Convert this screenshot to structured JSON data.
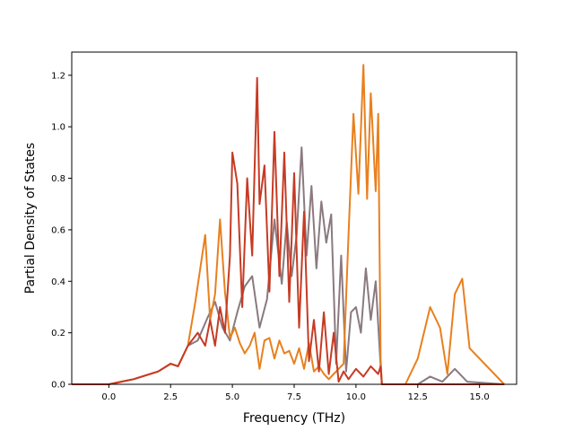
{
  "chart_data": {
    "type": "line",
    "title": "",
    "xlabel": "Frequency (THz)",
    "ylabel": "Partial Density of States",
    "xlim": [
      -1.5,
      16.5
    ],
    "ylim": [
      0,
      1.29
    ],
    "x_ticks": [
      0.0,
      2.5,
      5.0,
      7.5,
      10.0,
      12.5,
      15.0
    ],
    "x_tick_labels": [
      "0.0",
      "2.5",
      "5.0",
      "7.5",
      "10.0",
      "12.5",
      "15.0"
    ],
    "y_ticks": [
      0.0,
      0.2,
      0.4,
      0.6,
      0.8,
      1.0,
      1.2
    ],
    "y_tick_labels": [
      "0.0",
      "0.2",
      "0.4",
      "0.6",
      "0.8",
      "1.0",
      "1.2"
    ],
    "grid": false,
    "legend": "none",
    "series": [
      {
        "color": "#8a7a80",
        "x": [
          -1.5,
          0,
          1,
          2,
          2.5,
          2.8,
          3.2,
          3.6,
          4.0,
          4.3,
          4.6,
          4.9,
          5.2,
          5.5,
          5.8,
          6.1,
          6.4,
          6.7,
          7.0,
          7.2,
          7.4,
          7.6,
          7.8,
          8.0,
          8.2,
          8.4,
          8.6,
          8.8,
          9.0,
          9.2,
          9.4,
          9.6,
          9.8,
          10.0,
          10.2,
          10.4,
          10.6,
          10.8,
          11.0,
          11.05,
          12.0,
          12.5,
          13.0,
          13.5,
          14.0,
          14.5,
          16.0
        ],
        "y": [
          0,
          0,
          0.02,
          0.05,
          0.08,
          0.07,
          0.15,
          0.17,
          0.26,
          0.32,
          0.22,
          0.17,
          0.28,
          0.38,
          0.42,
          0.22,
          0.33,
          0.64,
          0.39,
          0.63,
          0.42,
          0.58,
          0.92,
          0.5,
          0.77,
          0.45,
          0.71,
          0.55,
          0.66,
          0.08,
          0.5,
          0.05,
          0.28,
          0.3,
          0.2,
          0.45,
          0.25,
          0.4,
          0.07,
          0,
          0,
          0,
          0.03,
          0.01,
          0.06,
          0.01,
          0
        ]
      },
      {
        "color": "#e8801e",
        "x": [
          -1.5,
          0,
          1,
          2,
          2.5,
          2.8,
          3.2,
          3.5,
          3.7,
          3.9,
          4.1,
          4.3,
          4.5,
          4.7,
          4.9,
          5.1,
          5.3,
          5.5,
          5.7,
          5.9,
          6.1,
          6.3,
          6.5,
          6.7,
          6.9,
          7.1,
          7.3,
          7.5,
          7.7,
          7.9,
          8.1,
          8.3,
          8.5,
          8.7,
          8.9,
          9.1,
          9.3,
          9.5,
          9.7,
          9.9,
          10.1,
          10.3,
          10.45,
          10.6,
          10.8,
          10.9,
          11.0,
          11.05,
          12.0,
          12.5,
          13.0,
          13.4,
          13.7,
          14.0,
          14.3,
          14.6,
          16.0
        ],
        "y": [
          0,
          0,
          0.02,
          0.05,
          0.08,
          0.07,
          0.15,
          0.32,
          0.45,
          0.58,
          0.25,
          0.35,
          0.64,
          0.36,
          0.18,
          0.22,
          0.16,
          0.12,
          0.15,
          0.2,
          0.06,
          0.17,
          0.18,
          0.1,
          0.17,
          0.12,
          0.13,
          0.08,
          0.14,
          0.06,
          0.16,
          0.05,
          0.07,
          0.04,
          0.02,
          0.04,
          0.06,
          0.08,
          0.58,
          1.05,
          0.74,
          1.24,
          0.72,
          1.13,
          0.75,
          1.05,
          0.1,
          0,
          0,
          0.1,
          0.3,
          0.22,
          0.04,
          0.35,
          0.41,
          0.14,
          0
        ]
      },
      {
        "color": "#c63b24",
        "x": [
          -1.5,
          0,
          1,
          2,
          2.5,
          2.8,
          3.2,
          3.6,
          3.9,
          4.1,
          4.3,
          4.5,
          4.7,
          4.9,
          5.0,
          5.2,
          5.4,
          5.6,
          5.8,
          6.0,
          6.1,
          6.3,
          6.5,
          6.7,
          6.9,
          7.1,
          7.3,
          7.5,
          7.7,
          7.9,
          8.1,
          8.3,
          8.5,
          8.7,
          8.9,
          9.1,
          9.3,
          9.5,
          9.7,
          10.0,
          10.3,
          10.6,
          10.9,
          11.0,
          11.05,
          16.0
        ],
        "y": [
          0,
          0,
          0.02,
          0.05,
          0.08,
          0.07,
          0.15,
          0.2,
          0.15,
          0.25,
          0.15,
          0.3,
          0.2,
          0.5,
          0.9,
          0.78,
          0.3,
          0.8,
          0.5,
          1.19,
          0.7,
          0.85,
          0.36,
          0.98,
          0.42,
          0.9,
          0.32,
          0.82,
          0.22,
          0.67,
          0.09,
          0.25,
          0.05,
          0.28,
          0.04,
          0.2,
          0.01,
          0.05,
          0.02,
          0.06,
          0.03,
          0.07,
          0.04,
          0.07,
          0,
          0
        ]
      }
    ]
  }
}
